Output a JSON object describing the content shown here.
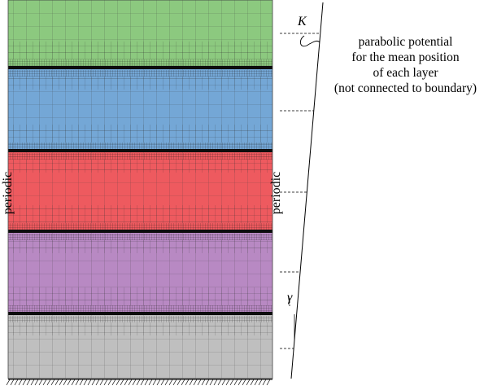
{
  "layers": [
    {
      "name": "green",
      "color": "#8cc97f"
    },
    {
      "name": "blue",
      "color": "#74a7d6"
    },
    {
      "name": "red",
      "color": "#ee5a5f"
    },
    {
      "name": "purple",
      "color": "#b889c3"
    },
    {
      "name": "gray",
      "color": "#bfbfbf"
    }
  ],
  "labels": {
    "left_boundary": "periodic",
    "right_boundary": "periodic",
    "k_symbol": "K",
    "gamma_symbol": "γ",
    "annotation": [
      "parabolic potential",
      "for the mean position",
      "of each layer",
      "(not connected to boundary)"
    ]
  }
}
